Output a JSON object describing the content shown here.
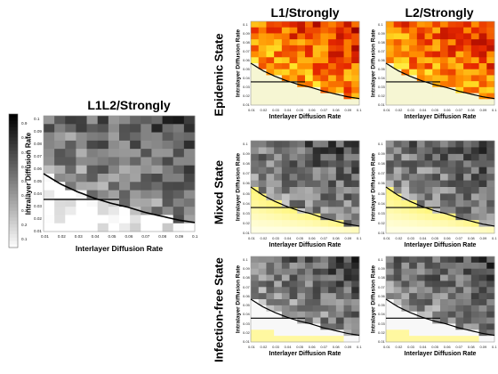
{
  "titles": {
    "big": "L1L2/Strongly",
    "col1": "L1/Strongly",
    "col2": "L2/Strongly"
  },
  "rows": {
    "epidemic": "Epidemic State",
    "mixed": "Mixed State",
    "infection_free": "Infection-free State"
  },
  "colorbar_ticks": [
    "0.9",
    "0.8",
    "0.7",
    "0.6",
    "0.5",
    "0.4",
    "0.3",
    "0.2",
    "0.1"
  ],
  "chart_data": [
    {
      "id": "big",
      "type": "heatmap",
      "title": "L1L2/Strongly",
      "xlabel": "Interlayer Diffusion Rate",
      "ylabel": "Intralayer Diffusion Rate",
      "xticks": [
        "0.01",
        "0.02",
        "0.03",
        "0.04",
        "0.05",
        "0.06",
        "0.07",
        "0.08",
        "0.09",
        "0.1"
      ],
      "yticks": [
        "0.1",
        "0.09",
        "0.08",
        "0.07",
        "0.06",
        "0.05",
        "0.04",
        "0.03",
        "0.02",
        "0.01"
      ],
      "xlim": [
        0.01,
        0.1
      ],
      "ylim": [
        0.01,
        0.1
      ],
      "colormap": "gray",
      "colorbar": true,
      "threshold_curve": {
        "x": [
          0.01,
          0.02,
          0.03,
          0.04,
          0.05,
          0.06,
          0.07,
          0.08,
          0.09,
          0.1
        ],
        "y": [
          0.055,
          0.047,
          0.041,
          0.036,
          0.032,
          0.029,
          0.025,
          0.022,
          0.019,
          0.017
        ]
      },
      "threshold_hline": {
        "y": 0.035,
        "x": [
          0.01,
          0.055
        ]
      }
    },
    {
      "id": "epi-l1",
      "type": "heatmap",
      "title": "L1/Strongly",
      "row": "Epidemic State",
      "xlabel": "Interlayer Diffusion Rate",
      "ylabel": "Intralayer Diffusion Rate",
      "xticks": [
        "0.01",
        "0.02",
        "0.03",
        "0.04",
        "0.05",
        "0.06",
        "0.07",
        "0.08",
        "0.09",
        "0.1"
      ],
      "yticks": [
        "0.1",
        "0.09",
        "0.08",
        "0.07",
        "0.06",
        "0.05",
        "0.04",
        "0.03",
        "0.02",
        "0.01"
      ],
      "xlim": [
        0.01,
        0.1
      ],
      "ylim": [
        0.01,
        0.1
      ],
      "colormap": "hot",
      "threshold_curve": {
        "x": [
          0.01,
          0.02,
          0.03,
          0.04,
          0.05,
          0.06,
          0.07,
          0.08,
          0.09,
          0.1
        ],
        "y": [
          0.055,
          0.047,
          0.041,
          0.036,
          0.032,
          0.029,
          0.025,
          0.022,
          0.019,
          0.017
        ]
      },
      "threshold_hline": {
        "y": 0.035,
        "x": [
          0.01,
          0.055
        ]
      }
    },
    {
      "id": "epi-l2",
      "type": "heatmap",
      "title": "L2/Strongly",
      "row": "Epidemic State",
      "xlabel": "Interlayer Diffusion Rate",
      "ylabel": "Intralayer Diffusion Rate",
      "xticks": [
        "0.01",
        "0.02",
        "0.03",
        "0.04",
        "0.05",
        "0.06",
        "0.07",
        "0.08",
        "0.09",
        "0.1"
      ],
      "yticks": [
        "0.1",
        "0.09",
        "0.08",
        "0.07",
        "0.06",
        "0.05",
        "0.04",
        "0.03",
        "0.02",
        "0.01"
      ],
      "xlim": [
        0.01,
        0.1
      ],
      "ylim": [
        0.01,
        0.1
      ],
      "colormap": "hot",
      "threshold_curve": {
        "x": [
          0.01,
          0.02,
          0.03,
          0.04,
          0.05,
          0.06,
          0.07,
          0.08,
          0.09,
          0.1
        ],
        "y": [
          0.055,
          0.047,
          0.041,
          0.036,
          0.032,
          0.029,
          0.025,
          0.022,
          0.019,
          0.017
        ]
      },
      "threshold_hline": {
        "y": 0.035,
        "x": [
          0.01,
          0.055
        ]
      }
    },
    {
      "id": "mix-l1",
      "type": "heatmap",
      "row": "Mixed State",
      "xlabel": "Interlayer Diffusion Rate",
      "ylabel": "Intralayer Diffusion Rate",
      "xticks": [
        "0.01",
        "0.02",
        "0.03",
        "0.04",
        "0.05",
        "0.06",
        "0.07",
        "0.08",
        "0.09",
        "0.1"
      ],
      "yticks": [
        "0.1",
        "0.09",
        "0.08",
        "0.07",
        "0.06",
        "0.05",
        "0.04",
        "0.03",
        "0.02",
        "0.01"
      ],
      "xlim": [
        0.01,
        0.1
      ],
      "ylim": [
        0.01,
        0.1
      ],
      "colormap": "gray-yellow",
      "threshold_curve": {
        "x": [
          0.01,
          0.02,
          0.03,
          0.04,
          0.05,
          0.06,
          0.07,
          0.08,
          0.09,
          0.1
        ],
        "y": [
          0.055,
          0.047,
          0.041,
          0.036,
          0.032,
          0.029,
          0.025,
          0.022,
          0.019,
          0.017
        ]
      },
      "threshold_hline": {
        "y": 0.035,
        "x": [
          0.01,
          0.055
        ]
      }
    },
    {
      "id": "mix-l2",
      "type": "heatmap",
      "row": "Mixed State",
      "xlabel": "Interlayer Diffusion Rate",
      "ylabel": "Intralayer Diffusion Rate",
      "xticks": [
        "0.01",
        "0.02",
        "0.03",
        "0.04",
        "0.05",
        "0.06",
        "0.07",
        "0.08",
        "0.09",
        "0.1"
      ],
      "yticks": [
        "0.1",
        "0.09",
        "0.08",
        "0.07",
        "0.06",
        "0.05",
        "0.04",
        "0.03",
        "0.02",
        "0.01"
      ],
      "xlim": [
        0.01,
        0.1
      ],
      "ylim": [
        0.01,
        0.1
      ],
      "colormap": "gray-yellow",
      "threshold_curve": {
        "x": [
          0.01,
          0.02,
          0.03,
          0.04,
          0.05,
          0.06,
          0.07,
          0.08,
          0.09,
          0.1
        ],
        "y": [
          0.055,
          0.047,
          0.041,
          0.036,
          0.032,
          0.029,
          0.025,
          0.022,
          0.019,
          0.017
        ]
      },
      "threshold_hline": {
        "y": 0.035,
        "x": [
          0.01,
          0.055
        ]
      }
    },
    {
      "id": "free-l1",
      "type": "heatmap",
      "row": "Infection-free State",
      "xlabel": "Interlayer Diffusion Rate",
      "ylabel": "Intralayer Diffusion Rate",
      "xticks": [
        "0.01",
        "0.02",
        "0.03",
        "0.04",
        "0.05",
        "0.06",
        "0.07",
        "0.08",
        "0.09",
        "0.1"
      ],
      "yticks": [
        "0.1",
        "0.09",
        "0.08",
        "0.07",
        "0.06",
        "0.05",
        "0.04",
        "0.03",
        "0.02",
        "0.01"
      ],
      "xlim": [
        0.01,
        0.1
      ],
      "ylim": [
        0.01,
        0.1
      ],
      "colormap": "gray-yellow-bottom",
      "threshold_curve": {
        "x": [
          0.01,
          0.02,
          0.03,
          0.04,
          0.05,
          0.06,
          0.07,
          0.08,
          0.09,
          0.1
        ],
        "y": [
          0.055,
          0.047,
          0.041,
          0.036,
          0.032,
          0.029,
          0.025,
          0.022,
          0.019,
          0.017
        ]
      },
      "threshold_hline": {
        "y": 0.035,
        "x": [
          0.01,
          0.055
        ]
      }
    },
    {
      "id": "free-l2",
      "type": "heatmap",
      "row": "Infection-free State",
      "xlabel": "Interlayer Diffusion Rate",
      "ylabel": "Intralayer Diffusion Rate",
      "xticks": [
        "0.01",
        "0.02",
        "0.03",
        "0.04",
        "0.05",
        "0.06",
        "0.07",
        "0.08",
        "0.09",
        "0.1"
      ],
      "yticks": [
        "0.1",
        "0.09",
        "0.08",
        "0.07",
        "0.06",
        "0.05",
        "0.04",
        "0.03",
        "0.02",
        "0.01"
      ],
      "xlim": [
        0.01,
        0.1
      ],
      "ylim": [
        0.01,
        0.1
      ],
      "colormap": "gray-yellow-bottom",
      "threshold_curve": {
        "x": [
          0.01,
          0.02,
          0.03,
          0.04,
          0.05,
          0.06,
          0.07,
          0.08,
          0.09,
          0.1
        ],
        "y": [
          0.055,
          0.047,
          0.041,
          0.036,
          0.032,
          0.029,
          0.025,
          0.022,
          0.019,
          0.017
        ]
      },
      "threshold_hline": {
        "y": 0.035,
        "x": [
          0.01,
          0.055
        ]
      }
    }
  ]
}
